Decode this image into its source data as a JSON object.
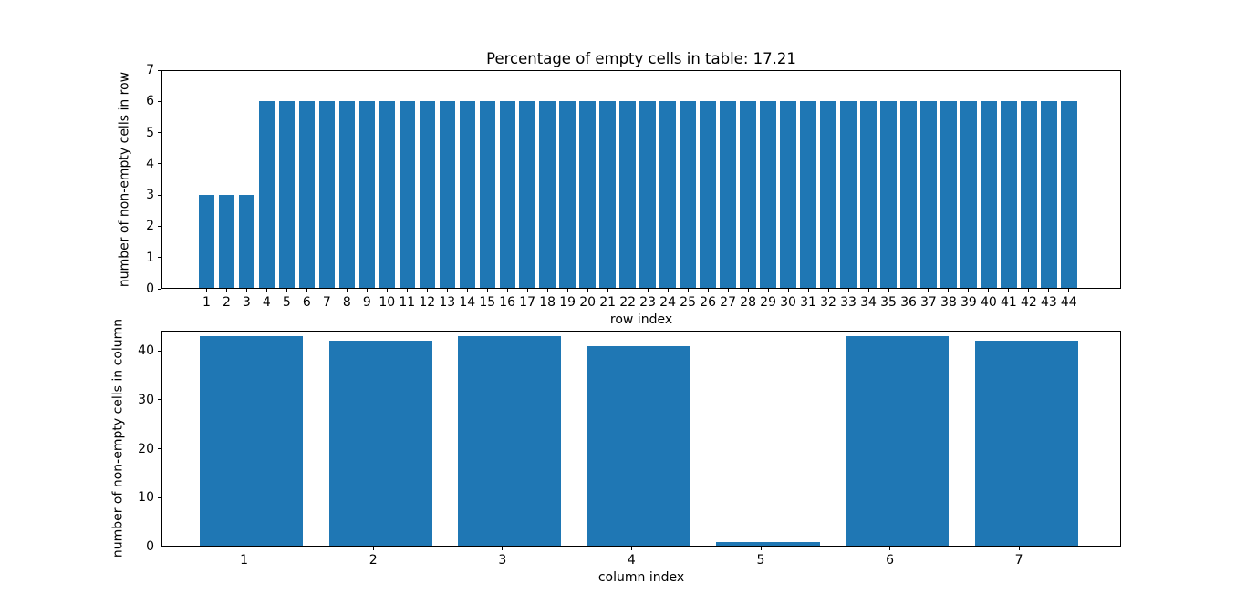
{
  "figure": {
    "background_color": "#ffffff",
    "text_color": "#000000"
  },
  "chart_data": [
    {
      "type": "bar",
      "title": "Percentage of empty cells in table: 17.21",
      "xlabel": "row index",
      "ylabel": "number of non-empty cells in row",
      "categories": [
        1,
        2,
        3,
        4,
        5,
        6,
        7,
        8,
        9,
        10,
        11,
        12,
        13,
        14,
        15,
        16,
        17,
        18,
        19,
        20,
        21,
        22,
        23,
        24,
        25,
        26,
        27,
        28,
        29,
        30,
        31,
        32,
        33,
        34,
        35,
        36,
        37,
        38,
        39,
        40,
        41,
        42,
        43,
        44
      ],
      "values": [
        3,
        3,
        3,
        6,
        6,
        6,
        6,
        6,
        6,
        6,
        6,
        6,
        6,
        6,
        6,
        6,
        6,
        6,
        6,
        6,
        6,
        6,
        6,
        6,
        6,
        6,
        6,
        6,
        6,
        6,
        6,
        6,
        6,
        6,
        6,
        6,
        6,
        6,
        6,
        6,
        6,
        6,
        6,
        6
      ],
      "bar_color": "#1f77b4",
      "ylim": [
        0,
        7
      ],
      "yticks": [
        0,
        1,
        2,
        3,
        4,
        5,
        6,
        7
      ],
      "grid": false,
      "legend": "none"
    },
    {
      "type": "bar",
      "title": "",
      "xlabel": "column index",
      "ylabel": "number of non-empty cells in column",
      "categories": [
        1,
        2,
        3,
        4,
        5,
        6,
        7
      ],
      "values": [
        43,
        42,
        43,
        41,
        1,
        43,
        42
      ],
      "bar_color": "#1f77b4",
      "ylim": [
        0,
        44.1
      ],
      "yticks": [
        0,
        10,
        20,
        30,
        40
      ],
      "grid": false,
      "legend": "none"
    }
  ]
}
